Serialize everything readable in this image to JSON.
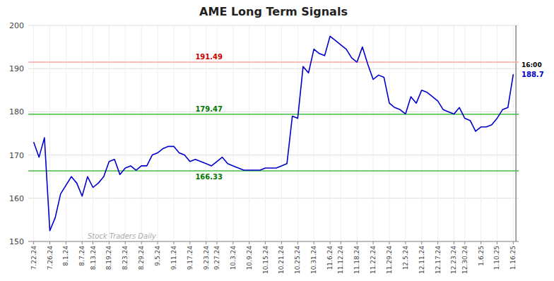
{
  "chart_data": {
    "type": "line",
    "title": "AME Long Term Signals",
    "categories": [
      "7.22.24",
      null,
      null,
      "7.26.24",
      null,
      null,
      "8.1.24",
      null,
      null,
      "8.7.24",
      null,
      "8.13.24",
      null,
      null,
      "8.19.24",
      null,
      null,
      "8.23.24",
      null,
      null,
      "8.29.24",
      null,
      null,
      "9.5.24",
      null,
      null,
      "9.11.24",
      null,
      null,
      "9.17.24",
      null,
      null,
      "9.23.24",
      null,
      "9.27.24",
      null,
      null,
      "10.3.24",
      null,
      null,
      "10.9.24",
      null,
      null,
      "10.15.24",
      null,
      null,
      "10.21.24",
      null,
      null,
      "10.25.24",
      null,
      null,
      "10.31.24",
      null,
      null,
      "11.6.24",
      null,
      "11.12.24",
      null,
      null,
      "11.18.24",
      null,
      null,
      "11.22.24",
      null,
      null,
      "11.29.24",
      null,
      null,
      "12.5.24",
      null,
      null,
      "12.11.24",
      null,
      null,
      "12.17.24",
      null,
      null,
      "12.23.24",
      null,
      "12.30.24",
      null,
      null,
      "1.6.25",
      null,
      null,
      "1.10.25",
      null,
      null,
      "1.16.25"
    ],
    "values": [
      173.0,
      169.5,
      174.0,
      152.5,
      155.5,
      161.0,
      163.0,
      165.0,
      163.5,
      160.5,
      165.0,
      162.5,
      163.5,
      165.0,
      168.5,
      169.0,
      165.5,
      167.0,
      167.5,
      166.5,
      167.5,
      167.5,
      170.0,
      170.5,
      171.5,
      172.0,
      172.0,
      170.5,
      170.0,
      168.5,
      169.0,
      168.5,
      168.0,
      167.5,
      168.5,
      169.5,
      168.0,
      167.5,
      167.0,
      166.5,
      166.5,
      166.5,
      166.5,
      167.0,
      167.0,
      167.0,
      167.5,
      168.0,
      179.0,
      178.5,
      190.5,
      189.0,
      194.5,
      193.5,
      193.0,
      197.5,
      196.5,
      195.5,
      194.5,
      192.5,
      191.5,
      195.0,
      191.0,
      187.5,
      188.5,
      188.0,
      182.0,
      181.0,
      180.5,
      179.5,
      183.5,
      182.0,
      185.0,
      184.5,
      183.5,
      182.5,
      180.5,
      180.0,
      179.5,
      181.0,
      178.5,
      178.0,
      175.5,
      176.5,
      176.5,
      177.0,
      178.5,
      180.5,
      181.0,
      188.7
    ],
    "color": "#0000cc",
    "ylim": [
      150,
      200
    ],
    "yticks": [
      150,
      160,
      170,
      180,
      190,
      200
    ],
    "grid": true,
    "annotations": [
      {
        "text": "191.49",
        "value": 191.49,
        "color": "#cc0000",
        "line_color": "#ffaaaa"
      },
      {
        "text": "179.47",
        "value": 179.47,
        "color": "#007700",
        "line_color": "#44bb44"
      },
      {
        "text": "166.33",
        "value": 166.33,
        "color": "#007700",
        "line_color": "#44bb44"
      },
      {
        "text": "16:00"
      },
      {
        "text": "188.7",
        "value": 188.7,
        "color": "#0000cc"
      },
      {
        "text": "Stock Traders Daily",
        "color": "#aaaaaa"
      }
    ]
  }
}
